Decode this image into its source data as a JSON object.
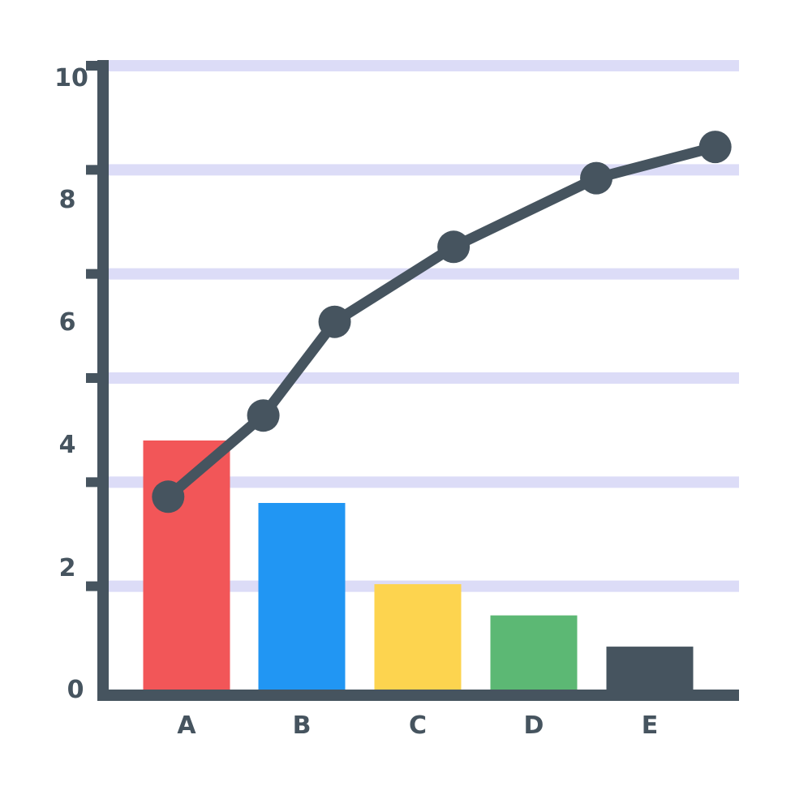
{
  "chart_data": {
    "type": "bar",
    "categories": [
      "A",
      "B",
      "C",
      "D",
      "E"
    ],
    "bars": {
      "values": [
        4.0,
        3.0,
        1.7,
        1.2,
        0.7
      ],
      "colors": [
        "#f25658",
        "#2196f3",
        "#fdd44f",
        "#5cb874",
        "#46545f"
      ]
    },
    "line": {
      "x": [
        0.5,
        1.3,
        1.9,
        2.9,
        4.1,
        5.1
      ],
      "y": [
        3.1,
        4.4,
        5.9,
        7.1,
        8.2,
        8.7
      ],
      "color": "#46545f"
    },
    "x_range": [
      0,
      5.3
    ],
    "y_ticks": [
      "0",
      "2",
      "4",
      "6",
      "8",
      "10"
    ],
    "ylim": [
      0,
      10
    ],
    "grid": true,
    "grid_color": "#dcdcf7",
    "axis_color": "#46545f"
  }
}
